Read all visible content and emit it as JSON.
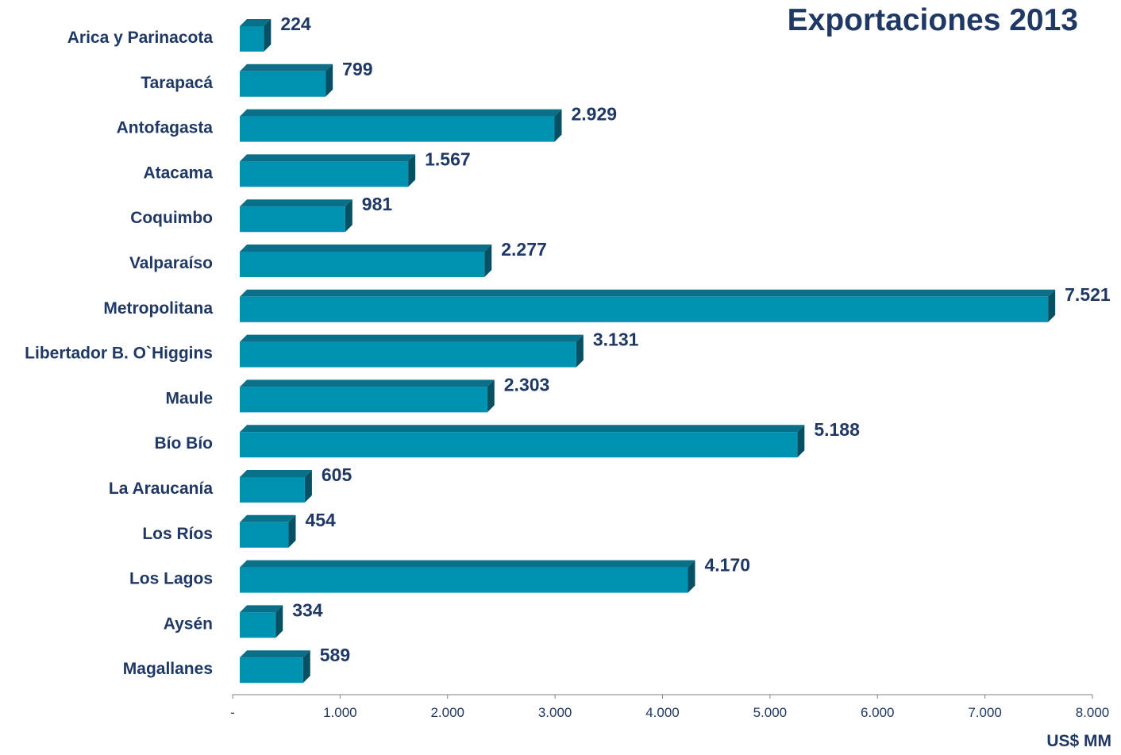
{
  "chart_data": {
    "type": "bar",
    "orientation": "horizontal",
    "title": "Exportaciones 2013",
    "xlabel": "US$ MM",
    "ylabel": "",
    "categories": [
      "Arica y Parinacota",
      "Tarapacá",
      "Antofagasta",
      "Atacama",
      "Coquimbo",
      "Valparaíso",
      "Metropolitana",
      "Libertador B. O`Higgins",
      "Maule",
      "Bío Bío",
      "La Araucanía",
      "Los Ríos",
      "Los Lagos",
      "Aysén",
      "Magallanes"
    ],
    "values": [
      224,
      799,
      2929,
      1567,
      981,
      2277,
      7521,
      3131,
      2303,
      5188,
      605,
      454,
      4170,
      334,
      589
    ],
    "value_labels": [
      "224",
      "799",
      "2.929",
      "1.567",
      "981",
      "2.277",
      "7.521",
      "3.131",
      "2.303",
      "5.188",
      "605",
      "454",
      "4.170",
      "334",
      "589"
    ],
    "x_ticks": [
      "-",
      "1.000",
      "2.000",
      "3.000",
      "4.000",
      "5.000",
      "6.000",
      "7.000",
      "8.000"
    ],
    "xlim": [
      0,
      8000
    ],
    "grid": false,
    "legend": "none",
    "colors": {
      "bar_front": "#0090b0",
      "bar_top": "#0a6f88",
      "bar_side": "#074f62",
      "text": "#1f3864",
      "axis": "#808080"
    }
  }
}
